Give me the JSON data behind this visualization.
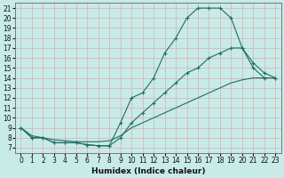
{
  "xlabel": "Humidex (Indice chaleur)",
  "background_color": "#c8ebe8",
  "grid_color": "#b0d8d5",
  "line_color": "#1e6e63",
  "xlim": [
    -0.5,
    23.5
  ],
  "ylim": [
    6.5,
    21.5
  ],
  "xticks": [
    0,
    1,
    2,
    3,
    4,
    5,
    6,
    7,
    8,
    9,
    10,
    11,
    12,
    13,
    14,
    15,
    16,
    17,
    18,
    19,
    20,
    21,
    22,
    23
  ],
  "yticks": [
    7,
    8,
    9,
    10,
    11,
    12,
    13,
    14,
    15,
    16,
    17,
    18,
    19,
    20,
    21
  ],
  "curve1_x": [
    0,
    1,
    2,
    3,
    4,
    5,
    6,
    7,
    8,
    9,
    10,
    11,
    12,
    13,
    14,
    15,
    16,
    17,
    18,
    19,
    20,
    21,
    22,
    23
  ],
  "curve1_y": [
    9.0,
    8.0,
    8.0,
    7.5,
    7.5,
    7.5,
    7.3,
    7.2,
    7.2,
    9.5,
    12.0,
    12.5,
    14.0,
    16.5,
    18.0,
    20.0,
    21.0,
    21.0,
    21.0,
    20.0,
    17.0,
    15.0,
    14.0,
    14.0
  ],
  "curve2_x": [
    0,
    1,
    2,
    3,
    4,
    5,
    6,
    7,
    8,
    9,
    10,
    11,
    12,
    13,
    14,
    15,
    16,
    17,
    18,
    19,
    20,
    21,
    22,
    23
  ],
  "curve2_y": [
    9.0,
    8.0,
    8.0,
    7.5,
    7.5,
    7.5,
    7.3,
    7.2,
    7.2,
    8.0,
    9.5,
    10.5,
    11.5,
    12.5,
    13.5,
    14.5,
    15.0,
    16.0,
    16.5,
    17.0,
    17.0,
    15.5,
    14.5,
    14.0
  ],
  "curve3_x": [
    0,
    1,
    2,
    3,
    4,
    5,
    6,
    7,
    8,
    9,
    10,
    11,
    12,
    13,
    14,
    15,
    16,
    17,
    18,
    19,
    20,
    21,
    22,
    23
  ],
  "curve3_y": [
    9.0,
    8.2,
    8.0,
    7.8,
    7.7,
    7.6,
    7.6,
    7.6,
    7.7,
    8.2,
    9.0,
    9.5,
    10.0,
    10.5,
    11.0,
    11.5,
    12.0,
    12.5,
    13.0,
    13.5,
    13.8,
    14.0,
    14.0,
    14.0
  ]
}
